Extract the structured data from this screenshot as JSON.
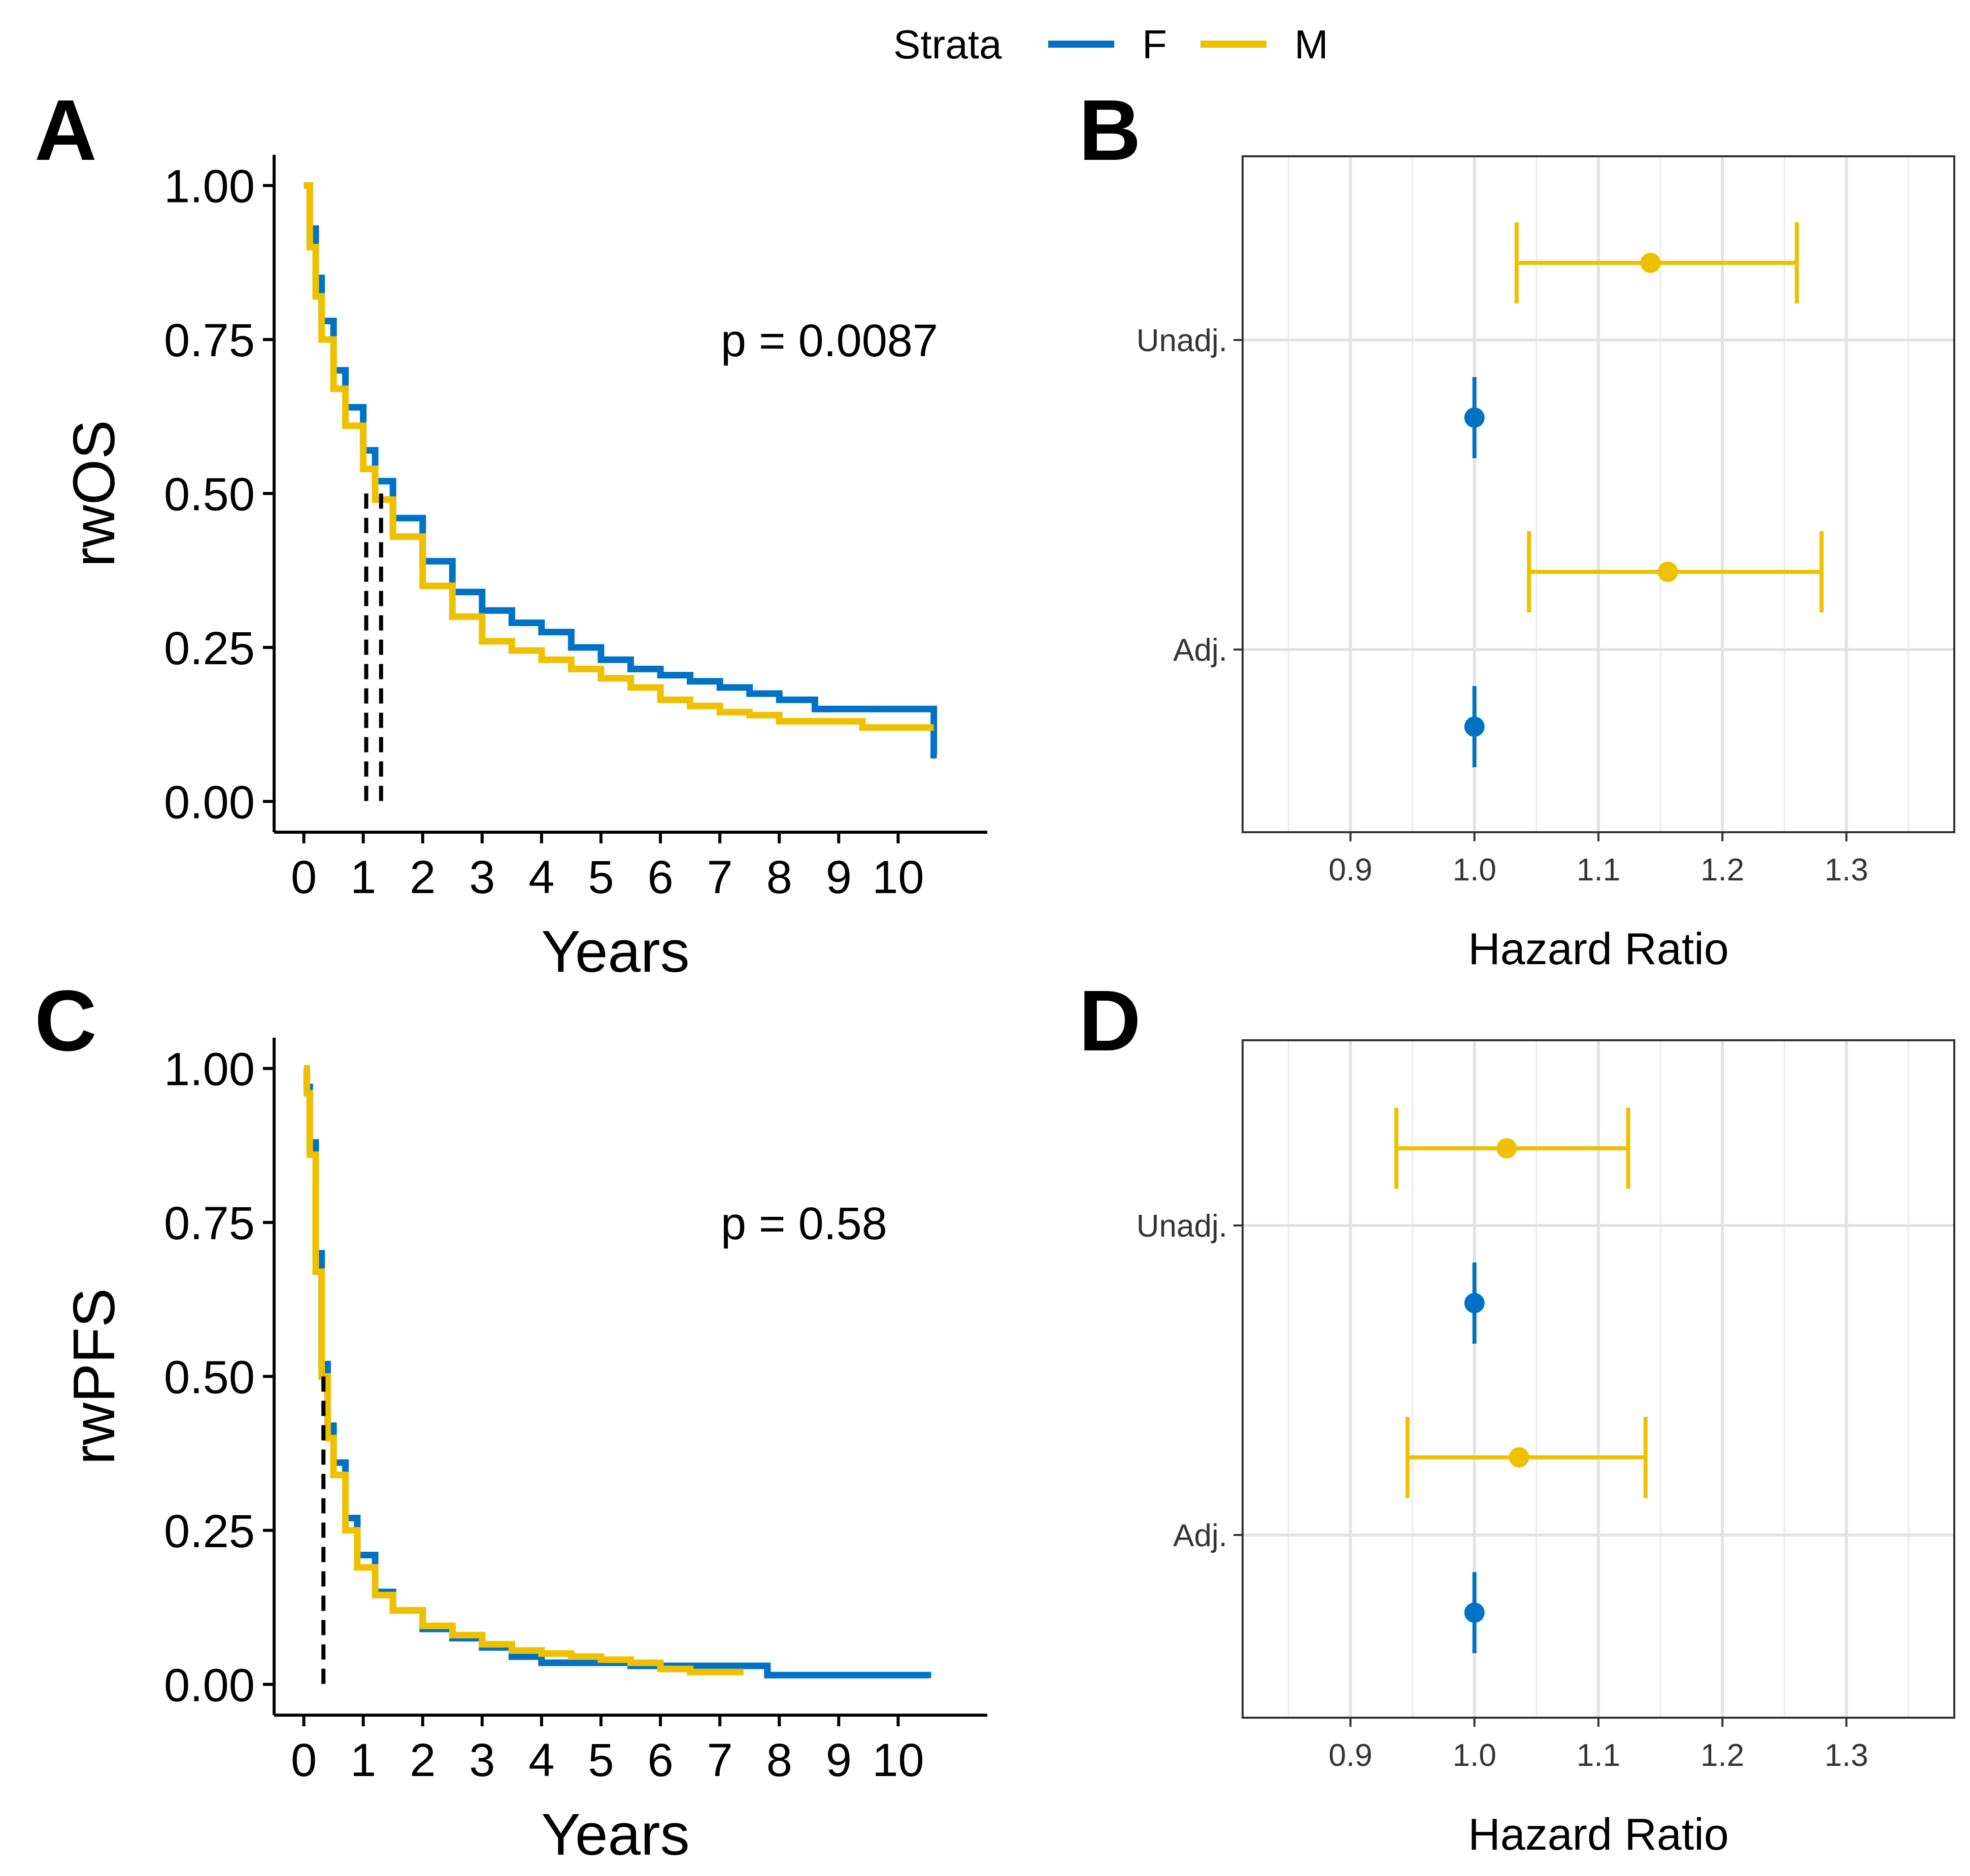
{
  "legend": {
    "title": "Strata",
    "entries": [
      {
        "label": "F",
        "color": "#0072C6"
      },
      {
        "label": "M",
        "color": "#EFC000"
      }
    ]
  },
  "chart_data": [
    {
      "panel": "A",
      "type": "line",
      "subtype": "kaplan-meier",
      "ylabel": "rwOS",
      "xlabel": "Years",
      "xticks": [
        0,
        1,
        2,
        3,
        4,
        5,
        6,
        7,
        8,
        9,
        10
      ],
      "yticks": [
        "0.00",
        "0.25",
        "0.50",
        "0.75",
        "1.00"
      ],
      "xlim": [
        -0.5,
        11.5
      ],
      "ylim": [
        -0.05,
        1.05
      ],
      "pvalue": "p = 0.0087",
      "median_lines": [
        1.05,
        1.3
      ],
      "series": [
        {
          "name": "F",
          "color": "#0072C6",
          "x": [
            0,
            0.1,
            0.2,
            0.3,
            0.5,
            0.7,
            1.0,
            1.2,
            1.5,
            2.0,
            2.5,
            3.0,
            3.5,
            4.0,
            4.5,
            5.0,
            5.5,
            6.0,
            6.5,
            7.0,
            7.5,
            8.0,
            8.6,
            9.0,
            10.0,
            10.5,
            10.6,
            10.65
          ],
          "y": [
            1.0,
            0.93,
            0.85,
            0.78,
            0.7,
            0.64,
            0.57,
            0.52,
            0.46,
            0.39,
            0.34,
            0.31,
            0.29,
            0.275,
            0.25,
            0.23,
            0.215,
            0.205,
            0.195,
            0.185,
            0.175,
            0.165,
            0.15,
            0.15,
            0.15,
            0.15,
            0.075,
            0.075
          ]
        },
        {
          "name": "M",
          "color": "#EFC000",
          "x": [
            0,
            0.1,
            0.2,
            0.3,
            0.5,
            0.7,
            1.0,
            1.2,
            1.5,
            2.0,
            2.5,
            3.0,
            3.5,
            4.0,
            4.5,
            5.0,
            5.5,
            6.0,
            6.5,
            7.0,
            7.5,
            8.0,
            9.0,
            9.4,
            10.0,
            10.6
          ],
          "y": [
            1.0,
            0.9,
            0.82,
            0.75,
            0.67,
            0.61,
            0.54,
            0.49,
            0.43,
            0.35,
            0.3,
            0.26,
            0.245,
            0.23,
            0.215,
            0.2,
            0.185,
            0.165,
            0.155,
            0.145,
            0.14,
            0.13,
            0.13,
            0.12,
            0.12,
            0.12
          ]
        }
      ]
    },
    {
      "panel": "B",
      "type": "scatter",
      "subtype": "forest",
      "xlabel": "Hazard Ratio",
      "xticks": [
        "0.9",
        "1.0",
        "1.1",
        "1.2",
        "1.3"
      ],
      "xlim": [
        0.813,
        1.387
      ],
      "groups": [
        "Unadj.",
        "Adj."
      ],
      "series": [
        {
          "name": "M",
          "color": "#EFC000",
          "group": "Unadj.",
          "hr": 1.142,
          "lower": 1.034,
          "upper": 1.26
        },
        {
          "name": "F",
          "color": "#0072C6",
          "group": "Unadj.",
          "hr": 1.0,
          "lower": 1.0,
          "upper": 1.0
        },
        {
          "name": "M",
          "color": "#EFC000",
          "group": "Adj.",
          "hr": 1.156,
          "lower": 1.044,
          "upper": 1.28
        },
        {
          "name": "F",
          "color": "#0072C6",
          "group": "Adj.",
          "hr": 1.0,
          "lower": 1.0,
          "upper": 1.0
        }
      ]
    },
    {
      "panel": "C",
      "type": "line",
      "subtype": "kaplan-meier",
      "ylabel": "rwPFS",
      "xlabel": "Years",
      "xticks": [
        0,
        1,
        2,
        3,
        4,
        5,
        6,
        7,
        8,
        9,
        10
      ],
      "yticks": [
        "0.00",
        "0.25",
        "0.50",
        "0.75",
        "1.00"
      ],
      "xlim": [
        -0.5,
        11.5
      ],
      "ylim": [
        -0.05,
        1.05
      ],
      "pvalue": "p = 0.58",
      "median_lines": [
        0.33
      ],
      "series": [
        {
          "name": "F",
          "color": "#0072C6",
          "x": [
            0,
            0.05,
            0.1,
            0.2,
            0.3,
            0.4,
            0.5,
            0.7,
            0.9,
            1.2,
            1.5,
            2.0,
            2.5,
            3.0,
            3.5,
            4.0,
            4.5,
            5.0,
            5.5,
            6.0,
            7.0,
            7.8,
            8.5,
            10.5
          ],
          "y": [
            1.0,
            0.97,
            0.88,
            0.7,
            0.52,
            0.42,
            0.36,
            0.27,
            0.21,
            0.15,
            0.12,
            0.09,
            0.075,
            0.06,
            0.045,
            0.035,
            0.035,
            0.035,
            0.03,
            0.03,
            0.03,
            0.015,
            0.015,
            0.01
          ]
        },
        {
          "name": "M",
          "color": "#EFC000",
          "x": [
            0,
            0.05,
            0.1,
            0.2,
            0.3,
            0.4,
            0.5,
            0.7,
            0.9,
            1.2,
            1.5,
            2.0,
            2.5,
            3.0,
            3.5,
            4.0,
            4.5,
            5.0,
            5.5,
            6.0,
            6.5,
            7.0,
            7.4
          ],
          "y": [
            1.0,
            0.96,
            0.86,
            0.67,
            0.5,
            0.4,
            0.34,
            0.25,
            0.19,
            0.145,
            0.12,
            0.095,
            0.08,
            0.065,
            0.055,
            0.05,
            0.045,
            0.04,
            0.035,
            0.025,
            0.02,
            0.02,
            0.02
          ]
        }
      ]
    },
    {
      "panel": "D",
      "type": "scatter",
      "subtype": "forest",
      "xlabel": "Hazard Ratio",
      "xticks": [
        "0.9",
        "1.0",
        "1.1",
        "1.2",
        "1.3"
      ],
      "xlim": [
        0.813,
        1.387
      ],
      "groups": [
        "Unadj.",
        "Adj."
      ],
      "series": [
        {
          "name": "M",
          "color": "#EFC000",
          "group": "Unadj.",
          "hr": 1.026,
          "lower": 0.937,
          "upper": 1.124
        },
        {
          "name": "F",
          "color": "#0072C6",
          "group": "Unadj.",
          "hr": 1.0,
          "lower": 1.0,
          "upper": 1.0
        },
        {
          "name": "M",
          "color": "#EFC000",
          "group": "Adj.",
          "hr": 1.036,
          "lower": 0.946,
          "upper": 1.138
        },
        {
          "name": "F",
          "color": "#0072C6",
          "group": "Adj.",
          "hr": 1.0,
          "lower": 1.0,
          "upper": 1.0
        }
      ]
    }
  ]
}
